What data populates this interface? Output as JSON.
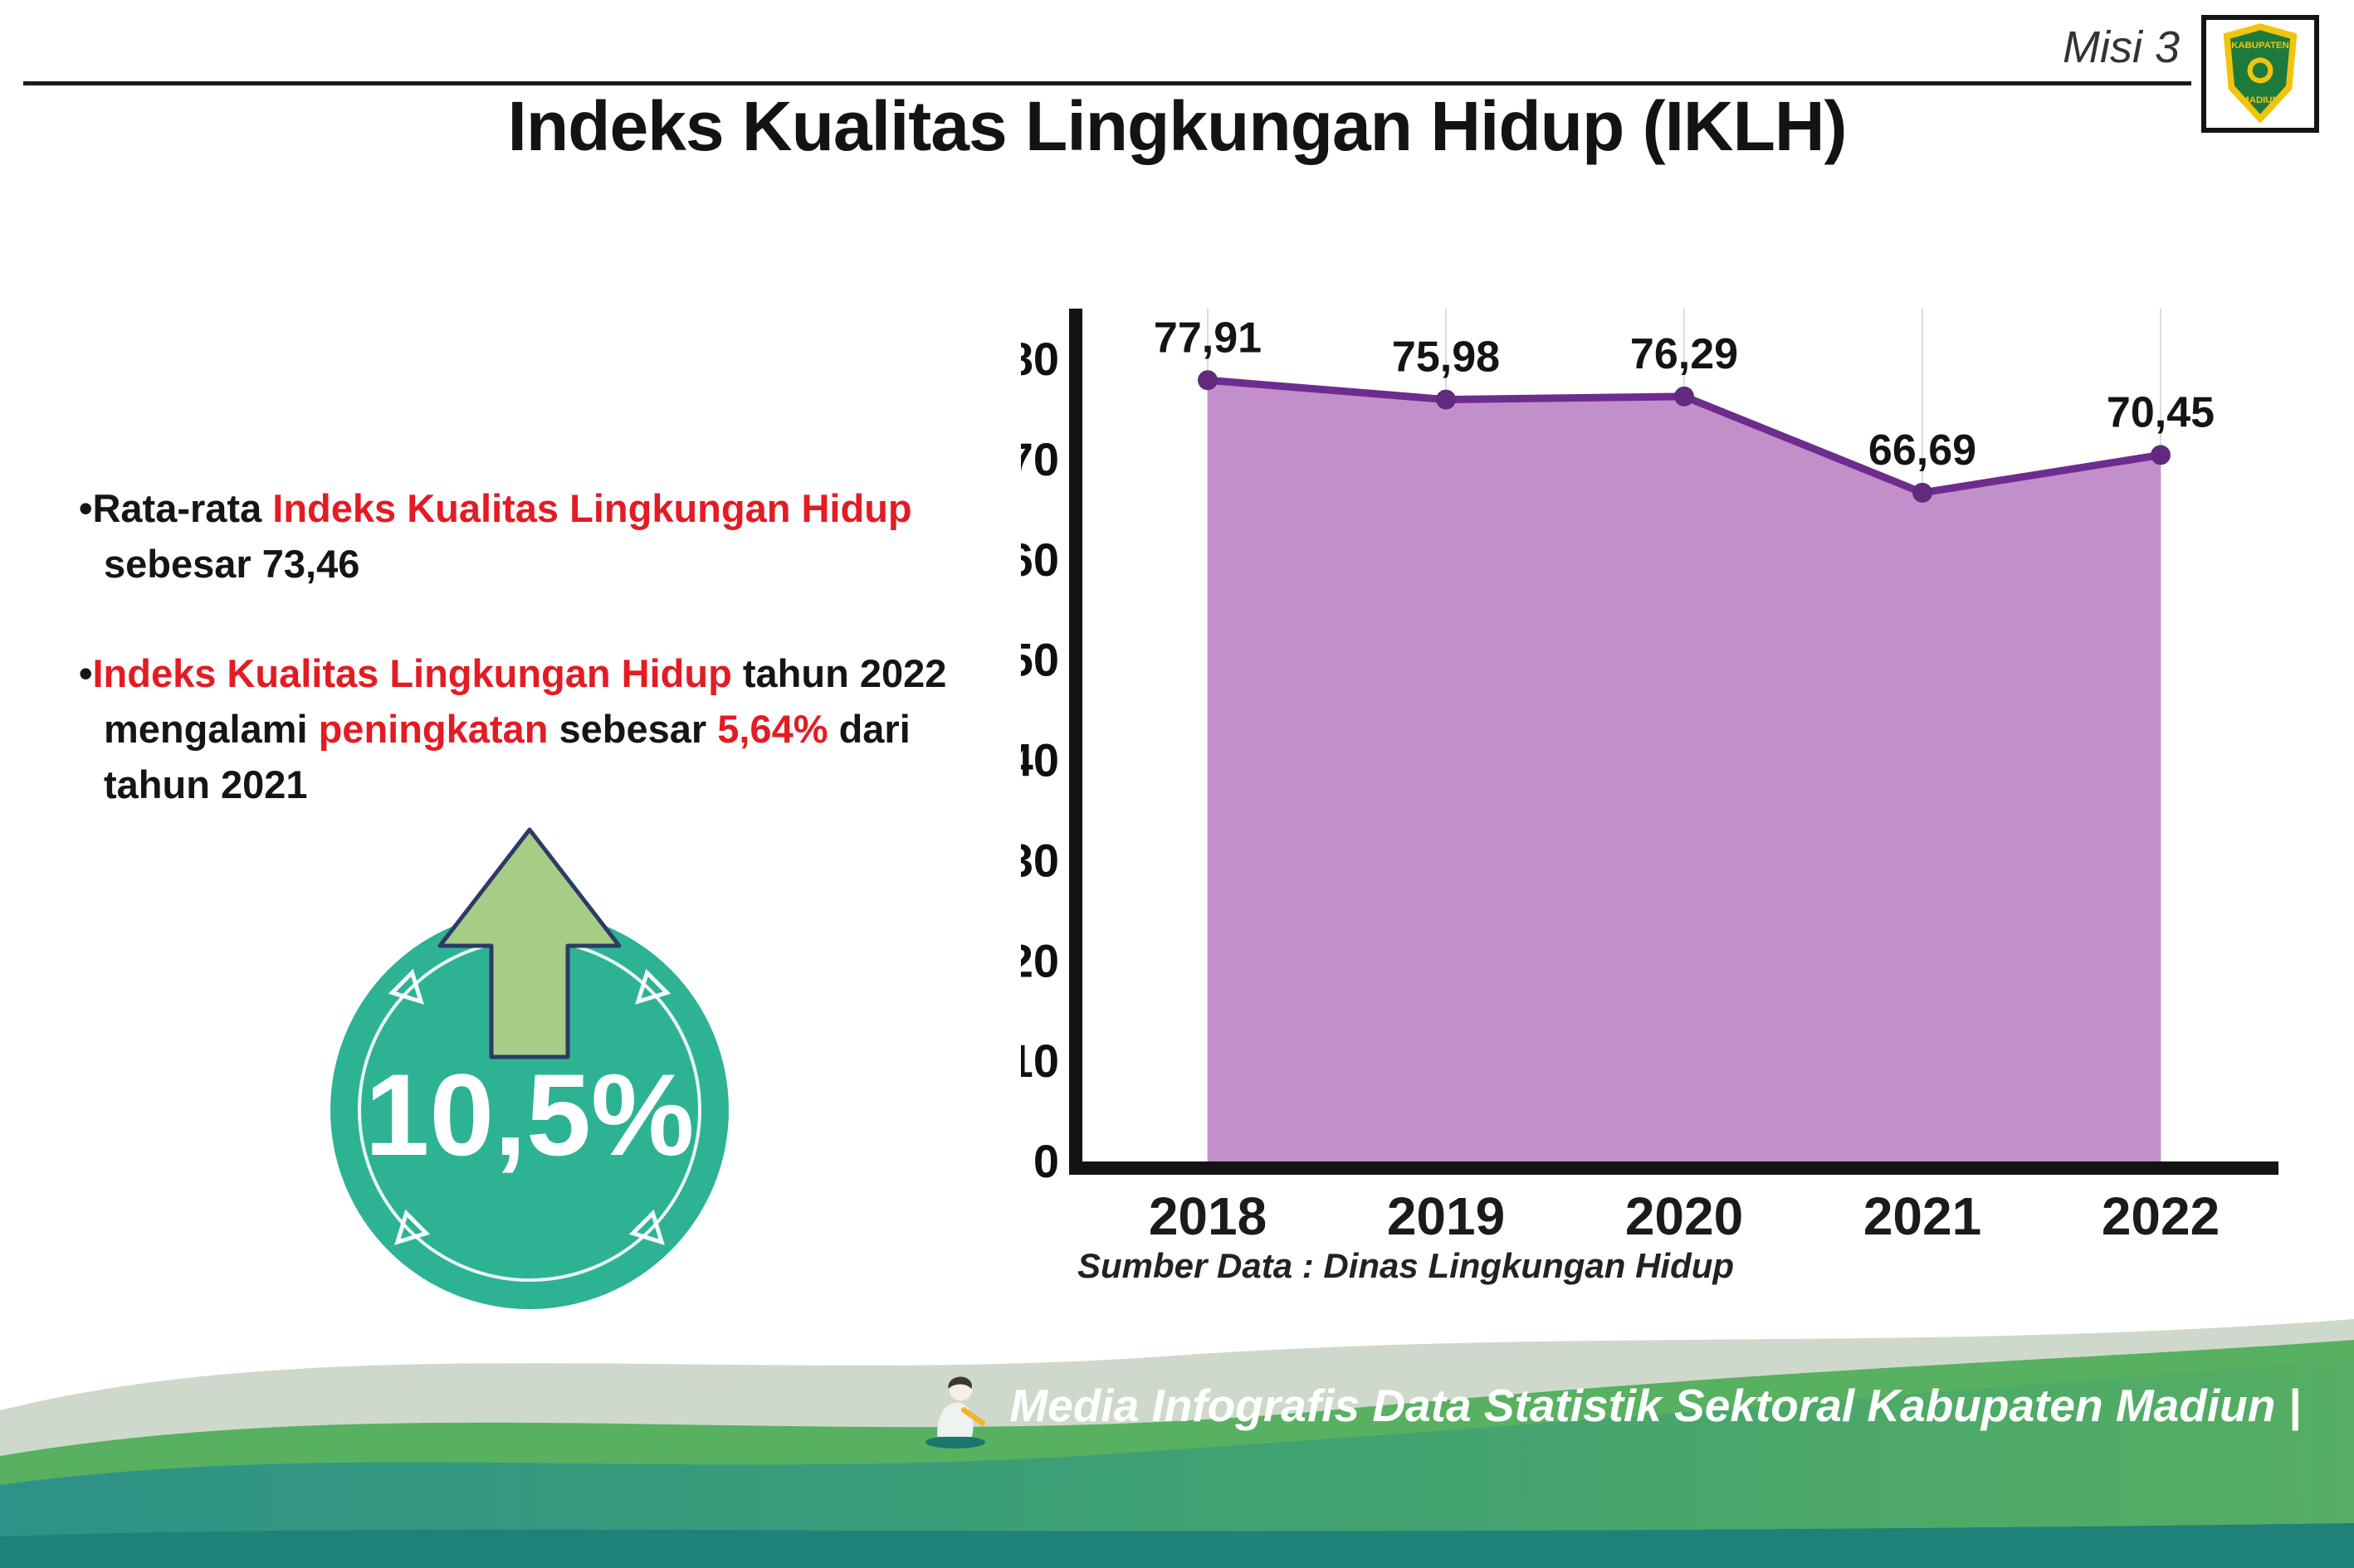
{
  "meta": {
    "misi": "Misi 3"
  },
  "title": "Indeks Kualitas Lingkungan Hidup (IKLH)",
  "logo": {
    "line1": "KABUPATEN",
    "line2": "MADIUN"
  },
  "bullets": {
    "marker": "•",
    "b1_pre": "Rata-rata ",
    "b1_red": "Indeks Kualitas Lingkungan Hidup",
    "b1_post": " sebesar 73,46",
    "b2_red1": "Indeks Kualitas Lingkungan Hidup",
    "b2_t1": " tahun 2022 mengalami ",
    "b2_red2": "peningkatan",
    "b2_t2": " sebesar ",
    "b2_red3": "5,64%",
    "b2_t3": " dari tahun 2021"
  },
  "badge": {
    "value": "10,5%"
  },
  "source": "Sumber Data : Dinas Lingkungan Hidup",
  "footer": "Media Infografis Data Statistik Sektoral Kabupaten Madiun |",
  "colors": {
    "red": "#e31b23",
    "line": "#6f2c8f",
    "dot": "#63297d",
    "fill": "#c28fca",
    "grid": "#dcdcdc",
    "axis": "#131313",
    "circle_bg": "#2db394",
    "arrow": "#a6cd85",
    "arrow_outline": "#2c3a66"
  },
  "chart_data": {
    "type": "area",
    "categories": [
      "2018",
      "2019",
      "2020",
      "2021",
      "2022"
    ],
    "values": [
      77.91,
      75.98,
      76.29,
      66.69,
      70.45
    ],
    "labels": [
      "77,91",
      "75,98",
      "76,29",
      "66,69",
      "70,45"
    ],
    "title": "",
    "xlabel": "",
    "ylabel": "",
    "ylim": [
      0,
      80
    ],
    "ytick_step": 10,
    "grid": "vertical-faint",
    "legend": "none"
  }
}
